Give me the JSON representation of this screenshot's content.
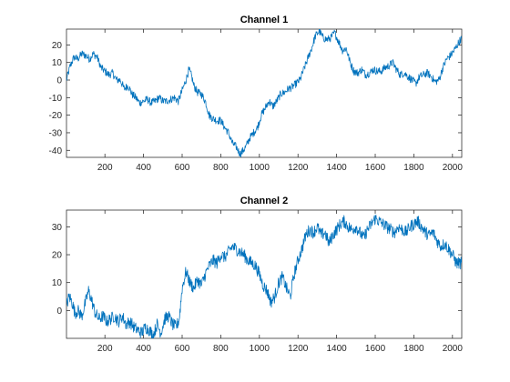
{
  "chart_data": [
    {
      "type": "line",
      "title": "Channel 1",
      "xlabel": "",
      "ylabel": "",
      "xlim": [
        1,
        2048
      ],
      "ylim": [
        -44,
        29
      ],
      "xticks": [
        200,
        400,
        600,
        800,
        1000,
        1200,
        1400,
        1600,
        1800,
        2000
      ],
      "yticks": [
        -40,
        -30,
        -20,
        -10,
        0,
        10,
        20
      ],
      "grid": false,
      "color": "#0072BD",
      "series": [
        {
          "values": [
            [
              1,
              0
            ],
            [
              20,
              8
            ],
            [
              40,
              13
            ],
            [
              60,
              12
            ],
            [
              80,
              15
            ],
            [
              100,
              14
            ],
            [
              120,
              12
            ],
            [
              140,
              15
            ],
            [
              160,
              13
            ],
            [
              180,
              7
            ],
            [
              200,
              5
            ],
            [
              220,
              3
            ],
            [
              240,
              4
            ],
            [
              260,
              0
            ],
            [
              280,
              0
            ],
            [
              300,
              -5
            ],
            [
              320,
              -3
            ],
            [
              340,
              -8
            ],
            [
              360,
              -10
            ],
            [
              380,
              -13
            ],
            [
              400,
              -12
            ],
            [
              420,
              -11
            ],
            [
              440,
              -13
            ],
            [
              460,
              -12
            ],
            [
              480,
              -10
            ],
            [
              500,
              -12
            ],
            [
              520,
              -12
            ],
            [
              540,
              -11
            ],
            [
              560,
              -10
            ],
            [
              580,
              -12
            ],
            [
              600,
              -6
            ],
            [
              620,
              0
            ],
            [
              635,
              6
            ],
            [
              650,
              2
            ],
            [
              660,
              -3
            ],
            [
              680,
              -7
            ],
            [
              700,
              -8
            ],
            [
              720,
              -12
            ],
            [
              740,
              -20
            ],
            [
              760,
              -22
            ],
            [
              780,
              -23
            ],
            [
              800,
              -23
            ],
            [
              820,
              -27
            ],
            [
              840,
              -30
            ],
            [
              860,
              -36
            ],
            [
              880,
              -38
            ],
            [
              900,
              -42
            ],
            [
              910,
              -41
            ],
            [
              930,
              -38
            ],
            [
              950,
              -33
            ],
            [
              970,
              -30
            ],
            [
              990,
              -27
            ],
            [
              1010,
              -20
            ],
            [
              1030,
              -16
            ],
            [
              1050,
              -12
            ],
            [
              1070,
              -15
            ],
            [
              1090,
              -12
            ],
            [
              1110,
              -8
            ],
            [
              1130,
              -7
            ],
            [
              1150,
              -5
            ],
            [
              1170,
              -4
            ],
            [
              1190,
              -2
            ],
            [
              1210,
              0
            ],
            [
              1230,
              6
            ],
            [
              1250,
              12
            ],
            [
              1270,
              18
            ],
            [
              1290,
              25
            ],
            [
              1310,
              28
            ],
            [
              1330,
              24
            ],
            [
              1350,
              23
            ],
            [
              1370,
              24
            ],
            [
              1390,
              27
            ],
            [
              1410,
              22
            ],
            [
              1430,
              17
            ],
            [
              1450,
              18
            ],
            [
              1470,
              10
            ],
            [
              1490,
              5
            ],
            [
              1510,
              4
            ],
            [
              1530,
              6
            ],
            [
              1550,
              3
            ],
            [
              1570,
              4
            ],
            [
              1590,
              6
            ],
            [
              1610,
              5
            ],
            [
              1630,
              5
            ],
            [
              1650,
              7
            ],
            [
              1670,
              8
            ],
            [
              1690,
              10
            ],
            [
              1710,
              6
            ],
            [
              1730,
              3
            ],
            [
              1750,
              4
            ],
            [
              1770,
              2
            ],
            [
              1790,
              0
            ],
            [
              1810,
              -2
            ],
            [
              1830,
              2
            ],
            [
              1850,
              3
            ],
            [
              1870,
              4
            ],
            [
              1890,
              2
            ],
            [
              1910,
              -1
            ],
            [
              1930,
              0
            ],
            [
              1950,
              7
            ],
            [
              1970,
              12
            ],
            [
              1990,
              14
            ],
            [
              2010,
              17
            ],
            [
              2030,
              21
            ],
            [
              2048,
              24
            ]
          ]
        }
      ]
    },
    {
      "type": "line",
      "title": "Channel 2",
      "xlabel": "",
      "ylabel": "",
      "xlim": [
        1,
        2048
      ],
      "ylim": [
        -10,
        36
      ],
      "xticks": [
        200,
        400,
        600,
        800,
        1000,
        1200,
        1400,
        1600,
        1800,
        2000
      ],
      "yticks": [
        0,
        10,
        20,
        30
      ],
      "grid": false,
      "color": "#0072BD",
      "series": [
        {
          "values": [
            [
              1,
              2
            ],
            [
              15,
              5
            ],
            [
              30,
              3
            ],
            [
              45,
              -1
            ],
            [
              60,
              0
            ],
            [
              80,
              -2
            ],
            [
              100,
              3
            ],
            [
              115,
              7
            ],
            [
              130,
              4
            ],
            [
              150,
              -1
            ],
            [
              170,
              -3
            ],
            [
              190,
              -2
            ],
            [
              210,
              -4
            ],
            [
              230,
              -3
            ],
            [
              250,
              -2
            ],
            [
              270,
              -4
            ],
            [
              290,
              -2
            ],
            [
              310,
              -5
            ],
            [
              330,
              -4
            ],
            [
              350,
              -6
            ],
            [
              370,
              -7
            ],
            [
              390,
              -8
            ],
            [
              410,
              -6
            ],
            [
              430,
              -7
            ],
            [
              450,
              -9
            ],
            [
              470,
              -5
            ],
            [
              490,
              -8
            ],
            [
              510,
              -3
            ],
            [
              530,
              -2
            ],
            [
              550,
              -5
            ],
            [
              570,
              -6
            ],
            [
              585,
              -3
            ],
            [
              600,
              8
            ],
            [
              620,
              14
            ],
            [
              640,
              10
            ],
            [
              660,
              8
            ],
            [
              680,
              11
            ],
            [
              700,
              9
            ],
            [
              720,
              13
            ],
            [
              740,
              16
            ],
            [
              760,
              18
            ],
            [
              780,
              17
            ],
            [
              800,
              20
            ],
            [
              820,
              19
            ],
            [
              840,
              21
            ],
            [
              860,
              23
            ],
            [
              880,
              22
            ],
            [
              900,
              21
            ],
            [
              920,
              20
            ],
            [
              940,
              18
            ],
            [
              960,
              17
            ],
            [
              980,
              16
            ],
            [
              1000,
              13
            ],
            [
              1020,
              9
            ],
            [
              1040,
              7
            ],
            [
              1060,
              3
            ],
            [
              1080,
              5
            ],
            [
              1100,
              10
            ],
            [
              1120,
              12
            ],
            [
              1140,
              8
            ],
            [
              1160,
              5
            ],
            [
              1180,
              13
            ],
            [
              1200,
              18
            ],
            [
              1220,
              22
            ],
            [
              1240,
              27
            ],
            [
              1260,
              29
            ],
            [
              1280,
              28
            ],
            [
              1300,
              30
            ],
            [
              1320,
              27
            ],
            [
              1340,
              28
            ],
            [
              1360,
              24
            ],
            [
              1380,
              27
            ],
            [
              1400,
              29
            ],
            [
              1420,
              31
            ],
            [
              1440,
              32
            ],
            [
              1460,
              30
            ],
            [
              1480,
              29
            ],
            [
              1500,
              30
            ],
            [
              1520,
              28
            ],
            [
              1540,
              26
            ],
            [
              1560,
              29
            ],
            [
              1580,
              31
            ],
            [
              1600,
              33
            ],
            [
              1620,
              32
            ],
            [
              1640,
              31
            ],
            [
              1660,
              30
            ],
            [
              1680,
              29
            ],
            [
              1700,
              28
            ],
            [
              1720,
              30
            ],
            [
              1740,
              29
            ],
            [
              1760,
              28
            ],
            [
              1780,
              30
            ],
            [
              1800,
              31
            ],
            [
              1820,
              32
            ],
            [
              1840,
              30
            ],
            [
              1860,
              28
            ],
            [
              1880,
              27
            ],
            [
              1900,
              28
            ],
            [
              1920,
              25
            ],
            [
              1940,
              23
            ],
            [
              1960,
              24
            ],
            [
              1980,
              22
            ],
            [
              2000,
              20
            ],
            [
              2020,
              17
            ],
            [
              2048,
              17
            ]
          ]
        }
      ]
    }
  ]
}
